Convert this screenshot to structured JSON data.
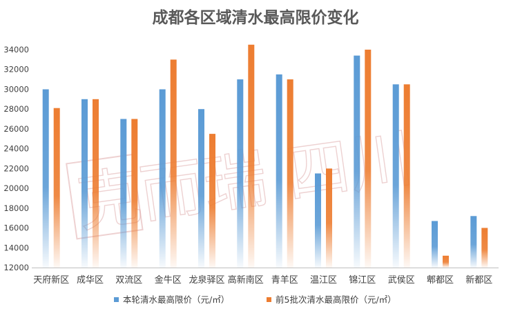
{
  "chart_data": {
    "type": "bar",
    "title": "成都各区域清水最高限价变化",
    "xlabel": "",
    "ylabel": "",
    "ylim": [
      12000,
      34000
    ],
    "yticks": [
      12000,
      14000,
      16000,
      18000,
      20000,
      22000,
      24000,
      26000,
      28000,
      30000,
      32000,
      34000
    ],
    "grid": false,
    "legend_position": "bottom",
    "categories": [
      "天府新区",
      "成华区",
      "双流区",
      "金牛区",
      "龙泉驿区",
      "高新南区",
      "青羊区",
      "温江区",
      "锦江区",
      "武侯区",
      "郫都区",
      "新都区"
    ],
    "series": [
      {
        "name": "本轮清水最高限价（元/㎡）",
        "color": "#5b9bd5",
        "values": [
          30000,
          29000,
          27000,
          30000,
          28000,
          31000,
          31500,
          21500,
          33400,
          30500,
          16700,
          17200
        ]
      },
      {
        "name": "前5批次清水最高限价（元/㎡）",
        "color": "#ed7d31",
        "values": [
          28100,
          29000,
          27000,
          33000,
          25500,
          34500,
          31000,
          22000,
          34000,
          30500,
          13200,
          16000
        ]
      }
    ],
    "watermark": "克而瑞 四川"
  }
}
